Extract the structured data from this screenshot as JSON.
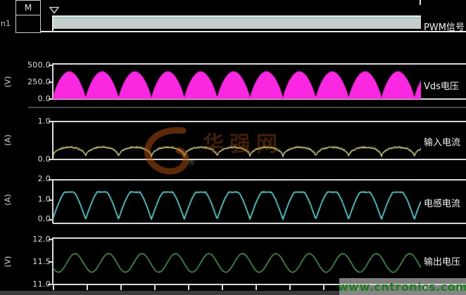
{
  "top_left": {
    "channel_label": "n1",
    "box_label": "M"
  },
  "watermark_center": {
    "text": "华强网",
    "registered_mark": "®"
  },
  "watermark_bottom": {
    "url": "www.cntronics.com"
  },
  "colors": {
    "background": "#000000",
    "frame": "#d9d9d9",
    "axis_text": "#dedede",
    "pwm_band": "#c7cdcc",
    "pwm_band_top": "#a9c9c4",
    "vds": "#fa28e0",
    "input_current": "#e6e6ae",
    "input_speckle": "#ffff7a",
    "inductor_current": "#66d9d9",
    "output_voltage": "#5ba968",
    "watermark_green": "#1e7e1e",
    "watermark_orange": "#b85512"
  },
  "chart_data": {
    "type": "oscilloscope-multipanel",
    "x_axis": {
      "ticks_count": 13,
      "labels_visible": false
    },
    "panels": [
      {
        "id": "pwm",
        "type": "digital",
        "label": "PWM信号",
        "description": "high-frequency PWM pulse train rendered as a solid band at this time scale"
      },
      {
        "id": "vds",
        "type": "area",
        "label": "Vds电压",
        "unit": "(V)",
        "ytick_labels": [
          "500.0",
          "250.0",
          "0.0"
        ],
        "ylim": [
          0,
          500
        ],
        "waveform": "rectified_sine",
        "cycles": 11.2,
        "peak": 400,
        "shape_exponent": 0.75
      },
      {
        "id": "iin",
        "type": "line",
        "label": "输入电流",
        "unit": "(A)",
        "ytick_labels": [
          "1.0",
          "0.0"
        ],
        "ylim": [
          0,
          1
        ],
        "waveform": "flattened_rectified_sine",
        "cycles": 11.2,
        "peak": 0.3,
        "shape_exponent": 0.33,
        "jitter": 0.8,
        "speckle": true
      },
      {
        "id": "il",
        "type": "line",
        "label": "电感电流",
        "unit": "(A)",
        "ytick_labels": [
          "2.0",
          "1.0",
          "0.0"
        ],
        "ylim": [
          0,
          2
        ],
        "waveform": "clipped_rectified_sine",
        "cycles": 11.2,
        "peak": 1.35,
        "clip_gain": 1.12,
        "jitter": 0.4
      },
      {
        "id": "vout",
        "type": "line",
        "label": "输出电压",
        "unit": "(V)",
        "ytick_labels": [
          "12.0",
          "11.5",
          "11.0"
        ],
        "ylim": [
          11,
          12
        ],
        "waveform": "sine",
        "cycles": 11.0,
        "mean": 11.45,
        "amplitude": 0.2,
        "phase_deg": -150,
        "jitter": 0.3
      }
    ]
  }
}
